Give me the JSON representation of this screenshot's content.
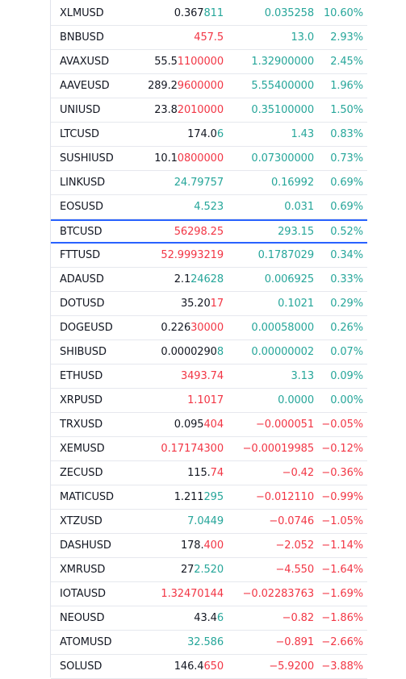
{
  "watchlist": {
    "rows": [
      {
        "symbol": "XLMUSD",
        "last_a": "0.367",
        "last_b": "811",
        "last_b_tone": "pos",
        "change": "0.035258",
        "change_pct": "10.60%",
        "tone": "pos"
      },
      {
        "symbol": "BNBUSD",
        "last_a": "",
        "last_b": "457.5",
        "last_b_tone": "neg",
        "change": "13.0",
        "change_pct": "2.93%",
        "tone": "pos"
      },
      {
        "symbol": "AVAXUSD",
        "last_a": "55.5",
        "last_b": "1100000",
        "last_b_tone": "neg",
        "change": "1.32900000",
        "change_pct": "2.45%",
        "tone": "pos"
      },
      {
        "symbol": "AAVEUSD",
        "last_a": "289.2",
        "last_b": "9600000",
        "last_b_tone": "neg",
        "change": "5.55400000",
        "change_pct": "1.96%",
        "tone": "pos"
      },
      {
        "symbol": "UNIUSD",
        "last_a": "23.8",
        "last_b": "2010000",
        "last_b_tone": "neg",
        "change": "0.35100000",
        "change_pct": "1.50%",
        "tone": "pos"
      },
      {
        "symbol": "LTCUSD",
        "last_a": "174.0",
        "last_b": "6",
        "last_b_tone": "pos",
        "change": "1.43",
        "change_pct": "0.83%",
        "tone": "pos"
      },
      {
        "symbol": "SUSHIUSD",
        "last_a": "10.1",
        "last_b": "0800000",
        "last_b_tone": "neg",
        "change": "0.07300000",
        "change_pct": "0.73%",
        "tone": "pos"
      },
      {
        "symbol": "LINKUSD",
        "last_a": "",
        "last_b": "24.79757",
        "last_b_tone": "pos",
        "change": "0.16992",
        "change_pct": "0.69%",
        "tone": "pos"
      },
      {
        "symbol": "EOSUSD",
        "last_a": "",
        "last_b": "4.523",
        "last_b_tone": "pos",
        "change": "0.031",
        "change_pct": "0.69%",
        "tone": "pos"
      },
      {
        "symbol": "BTCUSD",
        "last_a": "",
        "last_b": "56298.25",
        "last_b_tone": "neg",
        "change": "293.15",
        "change_pct": "0.52%",
        "tone": "pos",
        "selected": true
      },
      {
        "symbol": "FTTUSD",
        "last_a": "",
        "last_b": "52.9993219",
        "last_b_tone": "neg",
        "change": "0.1787029",
        "change_pct": "0.34%",
        "tone": "pos"
      },
      {
        "symbol": "ADAUSD",
        "last_a": "2.1",
        "last_b": "24628",
        "last_b_tone": "pos",
        "change": "0.006925",
        "change_pct": "0.33%",
        "tone": "pos"
      },
      {
        "symbol": "DOTUSD",
        "last_a": "35.20",
        "last_b": "17",
        "last_b_tone": "neg",
        "change": "0.1021",
        "change_pct": "0.29%",
        "tone": "pos"
      },
      {
        "symbol": "DOGEUSD",
        "last_a": "0.226",
        "last_b": "30000",
        "last_b_tone": "neg",
        "change": "0.00058000",
        "change_pct": "0.26%",
        "tone": "pos"
      },
      {
        "symbol": "SHIBUSD",
        "last_a": "0.0000290",
        "last_b": "8",
        "last_b_tone": "pos",
        "change": "0.00000002",
        "change_pct": "0.07%",
        "tone": "pos"
      },
      {
        "symbol": "ETHUSD",
        "last_a": "",
        "last_b": "3493.74",
        "last_b_tone": "neg",
        "change": "3.13",
        "change_pct": "0.09%",
        "tone": "pos"
      },
      {
        "symbol": "XRPUSD",
        "last_a": "",
        "last_b": "1.1017",
        "last_b_tone": "neg",
        "change": "0.0000",
        "change_pct": "0.00%",
        "tone": "pos"
      },
      {
        "symbol": "TRXUSD",
        "last_a": "0.095",
        "last_b": "404",
        "last_b_tone": "neg",
        "change": "−0.000051",
        "change_pct": "−0.05%",
        "tone": "neg"
      },
      {
        "symbol": "XEMUSD",
        "last_a": "",
        "last_b": "0.17174300",
        "last_b_tone": "neg",
        "change": "−0.00019985",
        "change_pct": "−0.12%",
        "tone": "neg"
      },
      {
        "symbol": "ZECUSD",
        "last_a": "115.",
        "last_b": "74",
        "last_b_tone": "neg",
        "change": "−0.42",
        "change_pct": "−0.36%",
        "tone": "neg"
      },
      {
        "symbol": "MATICUSD",
        "last_a": "1.211",
        "last_b": "295",
        "last_b_tone": "pos",
        "change": "−0.012110",
        "change_pct": "−0.99%",
        "tone": "neg"
      },
      {
        "symbol": "XTZUSD",
        "last_a": "",
        "last_b": "7.0449",
        "last_b_tone": "pos",
        "change": "−0.0746",
        "change_pct": "−1.05%",
        "tone": "neg"
      },
      {
        "symbol": "DASHUSD",
        "last_a": "178.",
        "last_b": "400",
        "last_b_tone": "neg",
        "change": "−2.052",
        "change_pct": "−1.14%",
        "tone": "neg"
      },
      {
        "symbol": "XMRUSD",
        "last_a": "27",
        "last_b": "2.520",
        "last_b_tone": "pos",
        "change": "−4.550",
        "change_pct": "−1.64%",
        "tone": "neg"
      },
      {
        "symbol": "IOTAUSD",
        "last_a": "",
        "last_b": "1.32470144",
        "last_b_tone": "neg",
        "change": "−0.02283763",
        "change_pct": "−1.69%",
        "tone": "neg"
      },
      {
        "symbol": "NEOUSD",
        "last_a": "43.4",
        "last_b": "6",
        "last_b_tone": "pos",
        "change": "−0.82",
        "change_pct": "−1.86%",
        "tone": "neg"
      },
      {
        "symbol": "ATOMUSD",
        "last_a": "",
        "last_b": "32.586",
        "last_b_tone": "pos",
        "change": "−0.891",
        "change_pct": "−2.66%",
        "tone": "neg"
      },
      {
        "symbol": "SOLUSD",
        "last_a": "146.4",
        "last_b": "650",
        "last_b_tone": "neg",
        "change": "−5.9200",
        "change_pct": "−3.88%",
        "tone": "neg"
      }
    ]
  },
  "colors": {
    "positive": "#26a69a",
    "negative": "#f23645",
    "neutral": "#131722",
    "selection_border": "#2962ff",
    "row_divider": "#e6e8ee"
  }
}
